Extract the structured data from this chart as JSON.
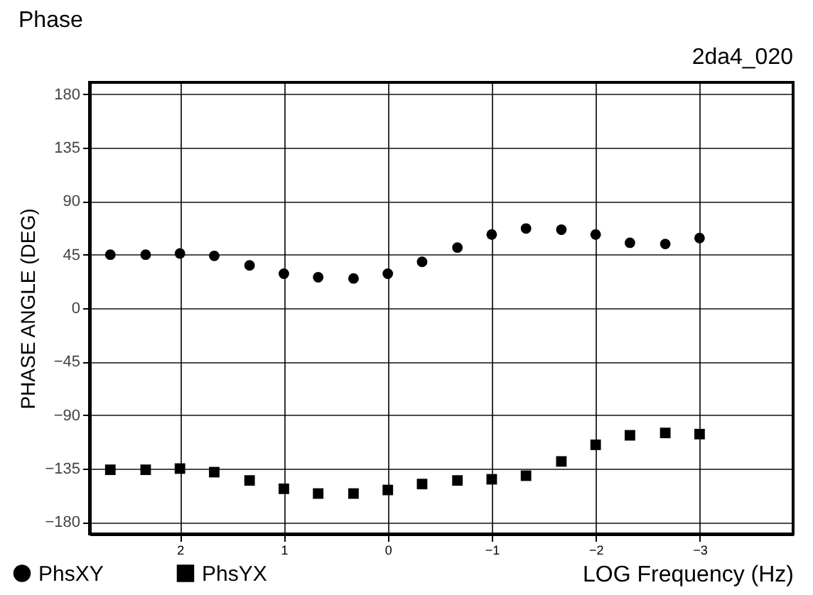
{
  "chart_data": {
    "type": "scatter",
    "title": "Phase",
    "subtitle": "2da4_020",
    "xlabel": "LOG Frequency (Hz)",
    "ylabel": "PHASE ANGLE (DEG)",
    "x": [
      2.67,
      2.33,
      2,
      1.67,
      1.33,
      1,
      0.67,
      0.33,
      0,
      -0.33,
      -0.67,
      -1,
      -1.33,
      -1.67,
      -2,
      -2.33,
      -2.67,
      -3
    ],
    "series": [
      {
        "name": "PhsXY",
        "color": "#000000",
        "marker": "circle",
        "values": [
          45,
          45,
          46,
          44,
          36,
          29,
          26,
          25,
          29,
          39,
          51,
          62,
          67,
          66,
          62,
          55,
          54,
          59
        ]
      },
      {
        "name": "PhsYX",
        "color": "#000000",
        "marker": "square",
        "values": [
          -136,
          -136,
          -135,
          -138,
          -145,
          -152,
          -156,
          -156,
          -153,
          -148,
          -145,
          -144,
          -141,
          -129,
          -115,
          -107,
          -105,
          -106
        ]
      }
    ],
    "xlim": [
      2.87,
      -3.9
    ],
    "xticks": [
      2,
      1,
      0,
      -1,
      -2,
      -3
    ],
    "ylim": [
      -190,
      190
    ],
    "yticks": [
      -180,
      -135,
      -90,
      -45,
      0,
      45,
      90,
      135,
      180
    ],
    "grid": true,
    "legend": "bottom left"
  }
}
